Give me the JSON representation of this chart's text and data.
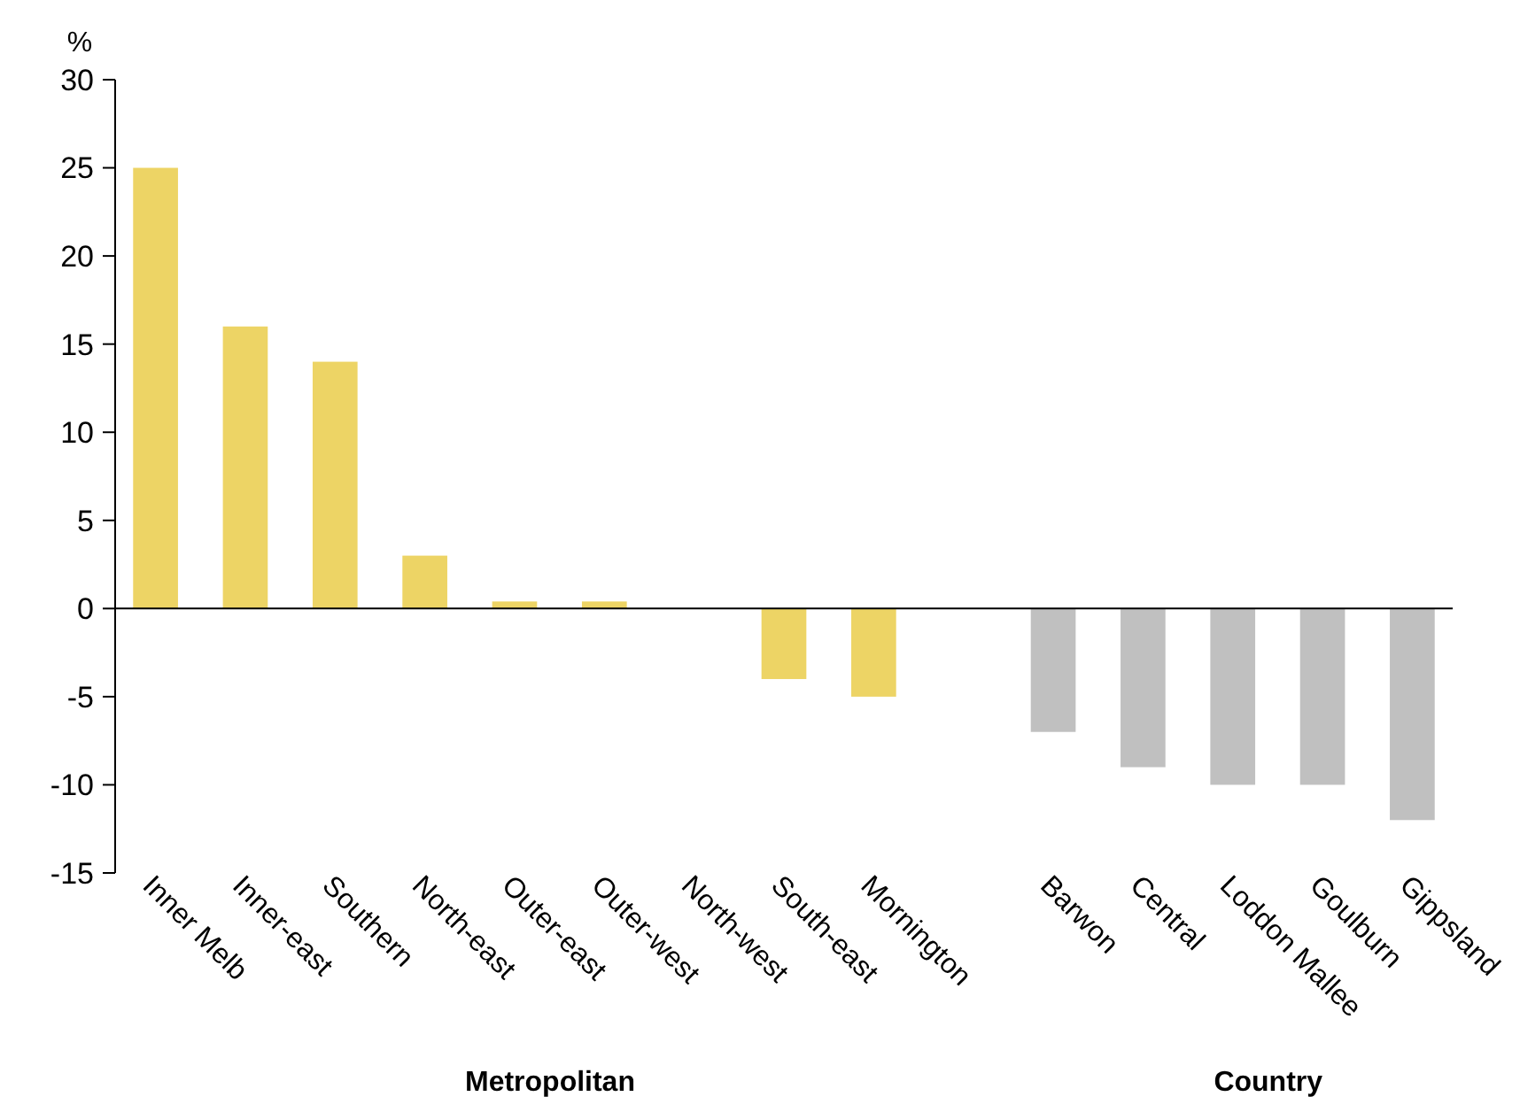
{
  "chart_data": {
    "type": "bar",
    "ylabel": "%",
    "categories": [
      "Inner Melb",
      "Inner-east",
      "Southern",
      "North-east",
      "Outer-east",
      "Outer-west",
      "North-west",
      "South-east",
      "Mornington",
      null,
      "Barwon",
      "Central",
      "Loddon Mallee",
      "Goulburn",
      "Gippsland"
    ],
    "values": [
      25,
      16,
      14,
      3,
      0.4,
      0.4,
      0,
      -4,
      -5,
      null,
      -7,
      -9,
      -10,
      -10,
      -12
    ],
    "colors": [
      "#edd465",
      "#edd465",
      "#edd465",
      "#edd465",
      "#edd465",
      "#edd465",
      "#edd465",
      "#edd465",
      "#edd465",
      null,
      "#c0c0c0",
      "#c0c0c0",
      "#c0c0c0",
      "#c0c0c0",
      "#c0c0c0"
    ],
    "ylim": [
      -15,
      30
    ],
    "yticks": [
      -15,
      -10,
      -5,
      0,
      5,
      10,
      15,
      20,
      25,
      30
    ],
    "annotations": [
      "Metropolitan",
      "Country"
    ]
  }
}
